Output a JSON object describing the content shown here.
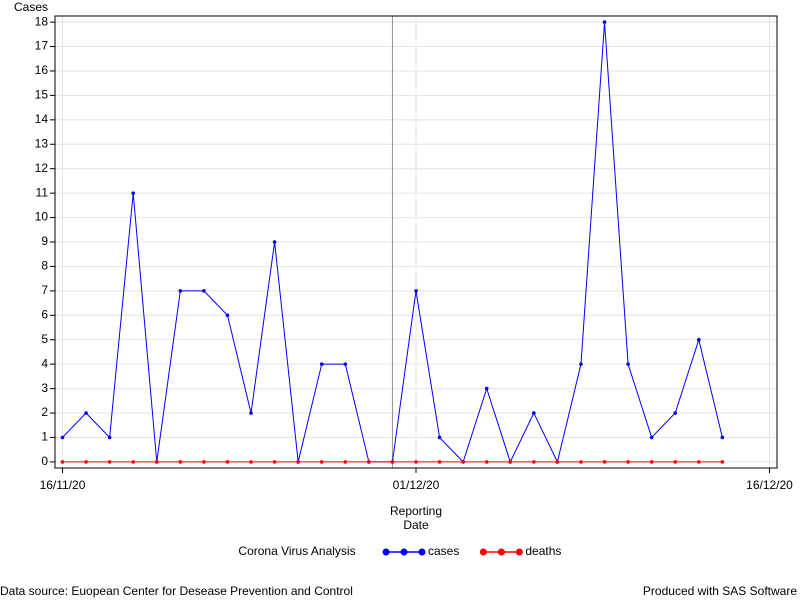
{
  "chart_data": {
    "type": "line",
    "y_label": "Cases",
    "x_label": [
      "Reporting",
      "Date"
    ],
    "x": [
      "16/11/20",
      "17/11/20",
      "18/11/20",
      "19/11/20",
      "20/11/20",
      "21/11/20",
      "22/11/20",
      "23/11/20",
      "24/11/20",
      "25/11/20",
      "26/11/20",
      "27/11/20",
      "28/11/20",
      "29/11/20",
      "30/11/20",
      "01/12/20",
      "02/12/20",
      "03/12/20",
      "04/12/20",
      "05/12/20",
      "06/12/20",
      "07/12/20",
      "08/12/20",
      "09/12/20",
      "10/12/20",
      "11/12/20",
      "12/12/20",
      "13/12/20",
      "14/12/20"
    ],
    "series": [
      {
        "name": "cases",
        "color": "#0000ff",
        "values": [
          1,
          2,
          1,
          11,
          0,
          7,
          7,
          6,
          2,
          9,
          0,
          4,
          4,
          0,
          0,
          7,
          1,
          0,
          3,
          0,
          2,
          0,
          4,
          18,
          4,
          1,
          2,
          5,
          1
        ]
      },
      {
        "name": "deaths",
        "color": "#ff0000",
        "values": [
          0,
          0,
          0,
          0,
          0,
          0,
          0,
          0,
          0,
          0,
          0,
          0,
          0,
          0,
          0,
          0,
          0,
          0,
          0,
          0,
          0,
          0,
          0,
          0,
          0,
          0,
          0,
          0,
          0
        ]
      }
    ],
    "xlim": [
      "16/11/20",
      "16/12/20"
    ],
    "xticks": [
      "16/11/20",
      "01/12/20",
      "16/12/20"
    ],
    "ylim": [
      -0.25,
      18.25
    ],
    "yticks": [
      0,
      1,
      2,
      3,
      4,
      5,
      6,
      7,
      8,
      9,
      10,
      11,
      12,
      13,
      14,
      15,
      16,
      17,
      18
    ],
    "reference_line_x": "30/11/20",
    "grid": true,
    "legend_title": "Corona Virus Analysis",
    "footnote_left": "Data source: Euopean Center for Desease Prevention and Control",
    "footnote_right": "Produced with SAS Software"
  }
}
